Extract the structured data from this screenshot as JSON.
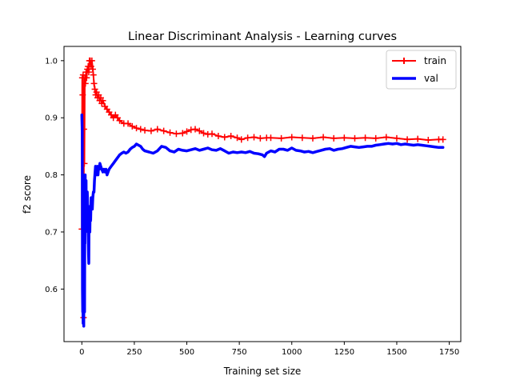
{
  "chart_data": {
    "type": "line",
    "title": "Linear Discriminant Analysis - Learning curves",
    "xlabel": "Training set size",
    "ylabel": "f2 score",
    "xlim": [
      -85,
      1805
    ],
    "ylim": [
      0.508,
      1.025
    ],
    "xticks": [
      0,
      250,
      500,
      750,
      1000,
      1250,
      1500,
      1750
    ],
    "yticks": [
      0.6,
      0.7,
      0.8,
      0.9,
      1.0
    ],
    "xtick_labels": [
      "0",
      "250",
      "500",
      "750",
      "1000",
      "1250",
      "1500",
      "1750"
    ],
    "ytick_labels": [
      "0.6",
      "0.7",
      "0.8",
      "0.9",
      "1.0"
    ],
    "grid": false,
    "legend_position": "top-right",
    "series": [
      {
        "name": "train",
        "color": "#ff0000",
        "marker": "+",
        "line_width": 2,
        "points": [
          [
            0,
            0.705
          ],
          [
            2,
            0.97
          ],
          [
            4,
            0.94
          ],
          [
            6,
            0.975
          ],
          [
            8,
            0.55
          ],
          [
            10,
            0.88
          ],
          [
            12,
            0.82
          ],
          [
            14,
            0.97
          ],
          [
            17,
            0.96
          ],
          [
            20,
            0.98
          ],
          [
            23,
            0.97
          ],
          [
            26,
            0.985
          ],
          [
            30,
            0.99
          ],
          [
            33,
            0.98
          ],
          [
            36,
            1.0
          ],
          [
            40,
            1.0
          ],
          [
            44,
            0.99
          ],
          [
            48,
            1.0
          ],
          [
            52,
            0.985
          ],
          [
            55,
            0.975
          ],
          [
            58,
            0.96
          ],
          [
            62,
            0.95
          ],
          [
            66,
            0.94
          ],
          [
            70,
            0.945
          ],
          [
            75,
            0.935
          ],
          [
            80,
            0.94
          ],
          [
            85,
            0.93
          ],
          [
            90,
            0.935
          ],
          [
            95,
            0.925
          ],
          [
            100,
            0.93
          ],
          [
            110,
            0.92
          ],
          [
            120,
            0.915
          ],
          [
            130,
            0.91
          ],
          [
            140,
            0.905
          ],
          [
            150,
            0.9
          ],
          [
            160,
            0.905
          ],
          [
            170,
            0.9
          ],
          [
            180,
            0.895
          ],
          [
            200,
            0.89
          ],
          [
            220,
            0.89
          ],
          [
            240,
            0.885
          ],
          [
            260,
            0.882
          ],
          [
            280,
            0.88
          ],
          [
            300,
            0.878
          ],
          [
            330,
            0.877
          ],
          [
            360,
            0.88
          ],
          [
            390,
            0.877
          ],
          [
            420,
            0.874
          ],
          [
            450,
            0.872
          ],
          [
            480,
            0.873
          ],
          [
            500,
            0.876
          ],
          [
            520,
            0.879
          ],
          [
            540,
            0.88
          ],
          [
            560,
            0.877
          ],
          [
            580,
            0.873
          ],
          [
            600,
            0.871
          ],
          [
            620,
            0.872
          ],
          [
            650,
            0.868
          ],
          [
            680,
            0.866
          ],
          [
            710,
            0.868
          ],
          [
            740,
            0.865
          ],
          [
            760,
            0.862
          ],
          [
            790,
            0.865
          ],
          [
            820,
            0.866
          ],
          [
            850,
            0.864
          ],
          [
            880,
            0.865
          ],
          [
            900,
            0.865
          ],
          [
            950,
            0.864
          ],
          [
            1000,
            0.866
          ],
          [
            1050,
            0.865
          ],
          [
            1100,
            0.864
          ],
          [
            1150,
            0.866
          ],
          [
            1200,
            0.864
          ],
          [
            1250,
            0.865
          ],
          [
            1300,
            0.864
          ],
          [
            1350,
            0.865
          ],
          [
            1400,
            0.864
          ],
          [
            1450,
            0.866
          ],
          [
            1500,
            0.864
          ],
          [
            1550,
            0.862
          ],
          [
            1600,
            0.863
          ],
          [
            1650,
            0.861
          ],
          [
            1700,
            0.862
          ],
          [
            1720,
            0.862
          ]
        ]
      },
      {
        "name": "val",
        "color": "#0000ff",
        "marker": "",
        "line_width": 3.5,
        "points": [
          [
            0,
            0.905
          ],
          [
            2,
            0.875
          ],
          [
            3,
            0.6
          ],
          [
            4,
            0.56
          ],
          [
            5,
            0.58
          ],
          [
            6,
            0.54
          ],
          [
            7,
            0.8
          ],
          [
            8,
            0.61
          ],
          [
            9,
            0.535
          ],
          [
            10,
            0.68
          ],
          [
            11,
            0.75
          ],
          [
            12,
            0.7
          ],
          [
            13,
            0.56
          ],
          [
            14,
            0.72
          ],
          [
            15,
            0.68
          ],
          [
            16,
            0.8
          ],
          [
            17,
            0.7
          ],
          [
            18,
            0.76
          ],
          [
            19,
            0.72
          ],
          [
            20,
            0.79
          ],
          [
            21,
            0.73
          ],
          [
            22,
            0.75
          ],
          [
            24,
            0.71
          ],
          [
            26,
            0.77
          ],
          [
            28,
            0.74
          ],
          [
            30,
            0.7
          ],
          [
            32,
            0.66
          ],
          [
            33,
            0.645
          ],
          [
            34,
            0.7
          ],
          [
            36,
            0.73
          ],
          [
            38,
            0.7
          ],
          [
            40,
            0.745
          ],
          [
            42,
            0.72
          ],
          [
            44,
            0.76
          ],
          [
            46,
            0.745
          ],
          [
            48,
            0.75
          ],
          [
            50,
            0.74
          ],
          [
            52,
            0.76
          ],
          [
            55,
            0.77
          ],
          [
            58,
            0.77
          ],
          [
            60,
            0.79
          ],
          [
            62,
            0.8
          ],
          [
            65,
            0.815
          ],
          [
            68,
            0.8
          ],
          [
            71,
            0.805
          ],
          [
            74,
            0.815
          ],
          [
            77,
            0.8
          ],
          [
            80,
            0.815
          ],
          [
            83,
            0.81
          ],
          [
            86,
            0.82
          ],
          [
            90,
            0.815
          ],
          [
            95,
            0.81
          ],
          [
            100,
            0.805
          ],
          [
            105,
            0.81
          ],
          [
            110,
            0.805
          ],
          [
            115,
            0.81
          ],
          [
            120,
            0.8
          ],
          [
            125,
            0.805
          ],
          [
            130,
            0.81
          ],
          [
            140,
            0.815
          ],
          [
            150,
            0.82
          ],
          [
            160,
            0.825
          ],
          [
            170,
            0.83
          ],
          [
            180,
            0.835
          ],
          [
            190,
            0.838
          ],
          [
            200,
            0.84
          ],
          [
            210,
            0.838
          ],
          [
            220,
            0.84
          ],
          [
            230,
            0.845
          ],
          [
            240,
            0.848
          ],
          [
            250,
            0.85
          ],
          [
            260,
            0.854
          ],
          [
            270,
            0.852
          ],
          [
            280,
            0.85
          ],
          [
            290,
            0.845
          ],
          [
            300,
            0.842
          ],
          [
            320,
            0.84
          ],
          [
            340,
            0.838
          ],
          [
            360,
            0.842
          ],
          [
            380,
            0.85
          ],
          [
            400,
            0.848
          ],
          [
            420,
            0.842
          ],
          [
            440,
            0.84
          ],
          [
            460,
            0.845
          ],
          [
            480,
            0.843
          ],
          [
            500,
            0.842
          ],
          [
            520,
            0.844
          ],
          [
            540,
            0.846
          ],
          [
            560,
            0.843
          ],
          [
            580,
            0.845
          ],
          [
            600,
            0.847
          ],
          [
            620,
            0.844
          ],
          [
            640,
            0.843
          ],
          [
            660,
            0.846
          ],
          [
            680,
            0.842
          ],
          [
            700,
            0.838
          ],
          [
            720,
            0.84
          ],
          [
            740,
            0.839
          ],
          [
            760,
            0.84
          ],
          [
            780,
            0.839
          ],
          [
            800,
            0.841
          ],
          [
            820,
            0.838
          ],
          [
            840,
            0.837
          ],
          [
            860,
            0.835
          ],
          [
            870,
            0.832
          ],
          [
            880,
            0.838
          ],
          [
            900,
            0.842
          ],
          [
            920,
            0.84
          ],
          [
            940,
            0.845
          ],
          [
            960,
            0.845
          ],
          [
            980,
            0.843
          ],
          [
            1000,
            0.847
          ],
          [
            1020,
            0.843
          ],
          [
            1040,
            0.842
          ],
          [
            1060,
            0.84
          ],
          [
            1080,
            0.841
          ],
          [
            1100,
            0.839
          ],
          [
            1120,
            0.841
          ],
          [
            1140,
            0.843
          ],
          [
            1160,
            0.845
          ],
          [
            1180,
            0.846
          ],
          [
            1200,
            0.843
          ],
          [
            1220,
            0.845
          ],
          [
            1240,
            0.846
          ],
          [
            1260,
            0.848
          ],
          [
            1280,
            0.85
          ],
          [
            1300,
            0.849
          ],
          [
            1320,
            0.848
          ],
          [
            1340,
            0.849
          ],
          [
            1360,
            0.85
          ],
          [
            1380,
            0.85
          ],
          [
            1400,
            0.852
          ],
          [
            1420,
            0.853
          ],
          [
            1440,
            0.854
          ],
          [
            1460,
            0.855
          ],
          [
            1480,
            0.854
          ],
          [
            1500,
            0.855
          ],
          [
            1520,
            0.853
          ],
          [
            1540,
            0.854
          ],
          [
            1560,
            0.853
          ],
          [
            1580,
            0.852
          ],
          [
            1600,
            0.853
          ],
          [
            1620,
            0.852
          ],
          [
            1640,
            0.851
          ],
          [
            1660,
            0.85
          ],
          [
            1680,
            0.849
          ],
          [
            1700,
            0.848
          ],
          [
            1720,
            0.848
          ]
        ]
      }
    ]
  }
}
